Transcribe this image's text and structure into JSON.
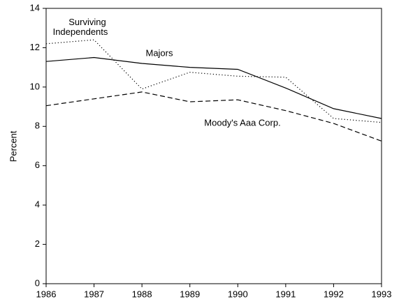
{
  "chart_data": {
    "type": "line",
    "y_label": "Percent",
    "x": [
      1986,
      1987,
      1988,
      1989,
      1990,
      1991,
      1992,
      1993
    ],
    "series": [
      {
        "name": "Majors",
        "color": "#000000",
        "style": "solid",
        "values": [
          11.3,
          11.5,
          11.2,
          11.0,
          10.9,
          9.95,
          8.9,
          8.4
        ]
      },
      {
        "name": "Surviving Independents",
        "color": "#000000",
        "style": "dotted",
        "values": [
          12.2,
          12.4,
          9.9,
          10.75,
          10.55,
          10.5,
          8.4,
          8.2
        ]
      },
      {
        "name": "Moody's Aaa Corp.",
        "color": "#000000",
        "style": "dashed",
        "values": [
          9.05,
          9.4,
          9.75,
          9.25,
          9.35,
          8.8,
          8.15,
          7.25
        ]
      }
    ],
    "xlim": [
      1986,
      1993
    ],
    "xticks": [
      1986,
      1987,
      1988,
      1989,
      1990,
      1991,
      1992,
      1993
    ],
    "ylim": [
      0,
      14
    ],
    "yticks": [
      0,
      2,
      4,
      6,
      8,
      10,
      12,
      14
    ]
  }
}
